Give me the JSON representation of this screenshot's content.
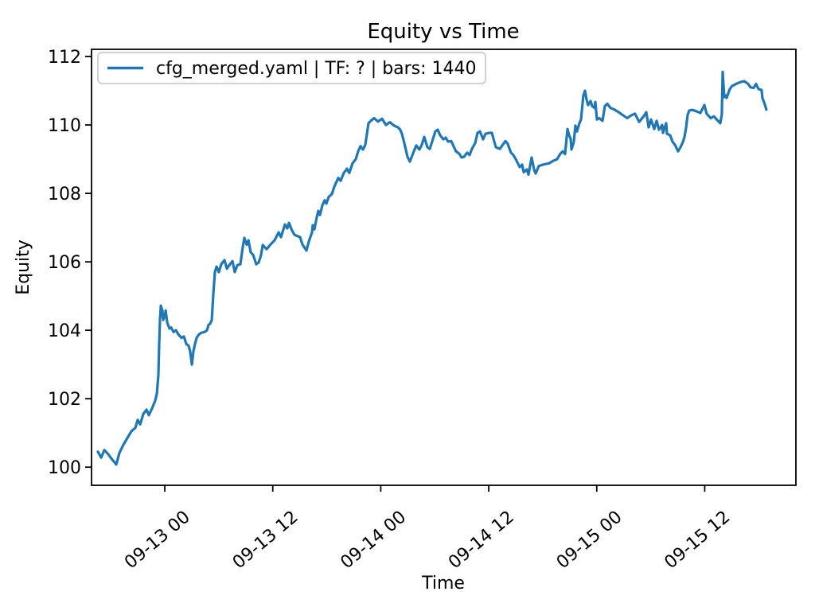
{
  "figure": {
    "background": "#ffffff",
    "accent_line_color": "#1f77b4",
    "legend_border_color": "#cccccc"
  },
  "chart_data": {
    "type": "line",
    "title": "Equity vs Time",
    "xlabel": "Time",
    "ylabel": "Equity",
    "grid": false,
    "legend_position": "upper left",
    "x_unit": "hours since 09-13 00:00",
    "xlim": [
      -8.14,
      70.13
    ],
    "ylim": [
      99.47,
      112.21
    ],
    "yticks": [
      100,
      102,
      104,
      106,
      108,
      110,
      112
    ],
    "xticks": [
      {
        "h": 0,
        "label": "09-13 00"
      },
      {
        "h": 12,
        "label": "09-13 12"
      },
      {
        "h": 24,
        "label": "09-14 00"
      },
      {
        "h": 36,
        "label": "09-14 12"
      },
      {
        "h": 48,
        "label": "09-15 00"
      },
      {
        "h": 60,
        "label": "09-15 12"
      }
    ],
    "series": [
      {
        "name": "cfg_merged.yaml | TF: ? | bars: 1440",
        "color": "#1f77b4",
        "points": [
          [
            -7.43,
            100.45
          ],
          [
            -7.07,
            100.28
          ],
          [
            -6.72,
            100.5
          ],
          [
            -6.28,
            100.38
          ],
          [
            -5.84,
            100.22
          ],
          [
            -5.39,
            100.08
          ],
          [
            -5.04,
            100.42
          ],
          [
            -4.6,
            100.65
          ],
          [
            -4.16,
            100.85
          ],
          [
            -3.71,
            101.05
          ],
          [
            -3.27,
            101.15
          ],
          [
            -3.01,
            101.38
          ],
          [
            -2.74,
            101.25
          ],
          [
            -2.39,
            101.55
          ],
          [
            -2.03,
            101.68
          ],
          [
            -1.77,
            101.52
          ],
          [
            -1.41,
            101.72
          ],
          [
            -1.06,
            101.95
          ],
          [
            -0.88,
            102.15
          ],
          [
            -0.71,
            102.7
          ],
          [
            -0.62,
            103.6
          ],
          [
            -0.53,
            104.3
          ],
          [
            -0.44,
            104.72
          ],
          [
            -0.27,
            104.58
          ],
          [
            -0.18,
            104.3
          ],
          [
            0.0,
            104.42
          ],
          [
            0.09,
            104.58
          ],
          [
            0.27,
            104.22
          ],
          [
            0.53,
            104.05
          ],
          [
            0.71,
            104.08
          ],
          [
            0.97,
            103.95
          ],
          [
            1.24,
            104.0
          ],
          [
            1.5,
            103.88
          ],
          [
            1.86,
            103.78
          ],
          [
            2.12,
            103.82
          ],
          [
            2.39,
            103.6
          ],
          [
            2.65,
            103.55
          ],
          [
            2.83,
            103.37
          ],
          [
            3.01,
            103.0
          ],
          [
            3.19,
            103.4
          ],
          [
            3.36,
            103.6
          ],
          [
            3.54,
            103.78
          ],
          [
            3.8,
            103.88
          ],
          [
            4.07,
            103.93
          ],
          [
            4.42,
            103.95
          ],
          [
            4.69,
            104.0
          ],
          [
            4.86,
            104.16
          ],
          [
            5.04,
            104.19
          ],
          [
            5.22,
            104.3
          ],
          [
            5.39,
            105.05
          ],
          [
            5.57,
            105.7
          ],
          [
            5.75,
            105.86
          ],
          [
            6.01,
            105.7
          ],
          [
            6.28,
            105.93
          ],
          [
            6.63,
            106.05
          ],
          [
            6.9,
            105.8
          ],
          [
            7.16,
            105.9
          ],
          [
            7.52,
            106.02
          ],
          [
            7.78,
            105.7
          ],
          [
            8.05,
            105.9
          ],
          [
            8.4,
            105.93
          ],
          [
            8.67,
            106.44
          ],
          [
            8.84,
            106.7
          ],
          [
            9.11,
            106.5
          ],
          [
            9.29,
            106.63
          ],
          [
            9.55,
            106.28
          ],
          [
            9.82,
            106.2
          ],
          [
            10.17,
            105.93
          ],
          [
            10.43,
            105.98
          ],
          [
            10.7,
            106.2
          ],
          [
            10.88,
            106.49
          ],
          [
            11.32,
            106.37
          ],
          [
            11.76,
            106.51
          ],
          [
            12.2,
            106.63
          ],
          [
            12.65,
            106.86
          ],
          [
            12.91,
            106.72
          ],
          [
            13.35,
            107.09
          ],
          [
            13.62,
            106.98
          ],
          [
            13.8,
            107.14
          ],
          [
            14.15,
            106.91
          ],
          [
            14.41,
            106.79
          ],
          [
            15.03,
            106.72
          ],
          [
            15.3,
            106.51
          ],
          [
            15.74,
            106.33
          ],
          [
            16.01,
            106.6
          ],
          [
            16.36,
            106.86
          ],
          [
            16.45,
            107.07
          ],
          [
            16.62,
            106.95
          ],
          [
            16.89,
            107.3
          ],
          [
            17.07,
            107.49
          ],
          [
            17.24,
            107.37
          ],
          [
            17.51,
            107.65
          ],
          [
            17.77,
            107.8
          ],
          [
            17.95,
            107.7
          ],
          [
            18.22,
            107.9
          ],
          [
            18.57,
            107.98
          ],
          [
            18.84,
            108.2
          ],
          [
            19.28,
            108.45
          ],
          [
            19.54,
            108.37
          ],
          [
            19.9,
            108.6
          ],
          [
            20.25,
            108.72
          ],
          [
            20.51,
            108.6
          ],
          [
            20.87,
            108.88
          ],
          [
            21.22,
            109.0
          ],
          [
            21.49,
            109.23
          ],
          [
            21.75,
            109.38
          ],
          [
            22.02,
            109.28
          ],
          [
            22.28,
            109.42
          ],
          [
            22.64,
            110.05
          ],
          [
            22.9,
            110.12
          ],
          [
            23.26,
            110.2
          ],
          [
            23.7,
            110.1
          ],
          [
            24.14,
            110.18
          ],
          [
            24.58,
            110.0
          ],
          [
            25.02,
            110.08
          ],
          [
            25.47,
            109.98
          ],
          [
            25.91,
            109.93
          ],
          [
            26.17,
            109.86
          ],
          [
            26.35,
            109.74
          ],
          [
            26.62,
            109.47
          ],
          [
            26.97,
            109.07
          ],
          [
            27.24,
            108.93
          ],
          [
            27.68,
            109.23
          ],
          [
            27.94,
            109.4
          ],
          [
            28.3,
            109.28
          ],
          [
            28.56,
            109.42
          ],
          [
            28.83,
            109.65
          ],
          [
            29.18,
            109.35
          ],
          [
            29.45,
            109.3
          ],
          [
            30.07,
            109.81
          ],
          [
            30.33,
            109.86
          ],
          [
            30.6,
            109.7
          ],
          [
            30.95,
            109.58
          ],
          [
            31.22,
            109.63
          ],
          [
            31.48,
            109.51
          ],
          [
            31.83,
            109.53
          ],
          [
            32.36,
            109.23
          ],
          [
            32.72,
            109.16
          ],
          [
            32.98,
            109.05
          ],
          [
            33.25,
            109.07
          ],
          [
            33.6,
            109.19
          ],
          [
            33.87,
            109.12
          ],
          [
            34.13,
            109.3
          ],
          [
            34.49,
            109.47
          ],
          [
            34.75,
            109.77
          ],
          [
            35.02,
            109.81
          ],
          [
            35.37,
            109.58
          ],
          [
            35.64,
            109.74
          ],
          [
            36.08,
            109.77
          ],
          [
            36.35,
            109.77
          ],
          [
            36.79,
            109.35
          ],
          [
            37.23,
            109.3
          ],
          [
            37.85,
            109.53
          ],
          [
            38.11,
            109.45
          ],
          [
            38.47,
            109.19
          ],
          [
            38.73,
            109.12
          ],
          [
            39.0,
            109.0
          ],
          [
            39.44,
            108.77
          ],
          [
            39.71,
            108.84
          ],
          [
            39.88,
            108.62
          ],
          [
            40.24,
            108.7
          ],
          [
            40.41,
            108.55
          ],
          [
            40.77,
            109.05
          ],
          [
            41.03,
            108.7
          ],
          [
            41.21,
            108.58
          ],
          [
            41.56,
            108.8
          ],
          [
            42.01,
            108.84
          ],
          [
            42.71,
            108.88
          ],
          [
            43.15,
            108.95
          ],
          [
            43.6,
            109.0
          ],
          [
            43.95,
            109.16
          ],
          [
            44.22,
            109.23
          ],
          [
            44.48,
            109.15
          ],
          [
            44.75,
            109.88
          ],
          [
            44.92,
            109.7
          ],
          [
            45.1,
            109.6
          ],
          [
            45.19,
            109.28
          ],
          [
            45.45,
            109.5
          ],
          [
            45.63,
            109.98
          ],
          [
            45.81,
            109.81
          ],
          [
            46.07,
            110.05
          ],
          [
            46.25,
            110.16
          ],
          [
            46.51,
            110.85
          ],
          [
            46.69,
            111.0
          ],
          [
            46.87,
            110.74
          ],
          [
            47.04,
            110.58
          ],
          [
            47.31,
            110.7
          ],
          [
            47.49,
            110.55
          ],
          [
            47.75,
            110.5
          ],
          [
            47.84,
            110.67
          ],
          [
            48.02,
            110.16
          ],
          [
            48.28,
            110.2
          ],
          [
            48.64,
            110.12
          ],
          [
            48.9,
            110.55
          ],
          [
            49.17,
            110.62
          ],
          [
            49.52,
            110.5
          ],
          [
            49.96,
            110.45
          ],
          [
            50.41,
            110.38
          ],
          [
            50.67,
            110.33
          ],
          [
            50.94,
            110.28
          ],
          [
            51.38,
            110.2
          ],
          [
            51.82,
            110.28
          ],
          [
            52.26,
            110.33
          ],
          [
            52.71,
            110.09
          ],
          [
            53.15,
            110.23
          ],
          [
            53.5,
            110.37
          ],
          [
            53.77,
            109.93
          ],
          [
            54.03,
            110.16
          ],
          [
            54.39,
            109.88
          ],
          [
            54.65,
            110.12
          ],
          [
            54.92,
            109.86
          ],
          [
            55.27,
            110.0
          ],
          [
            55.36,
            109.77
          ],
          [
            55.71,
            110.05
          ],
          [
            55.8,
            109.74
          ],
          [
            56.16,
            109.7
          ],
          [
            56.42,
            109.51
          ],
          [
            56.69,
            109.42
          ],
          [
            57.04,
            109.23
          ],
          [
            57.31,
            109.35
          ],
          [
            57.57,
            109.5
          ],
          [
            57.75,
            109.65
          ],
          [
            57.92,
            109.9
          ],
          [
            58.1,
            110.3
          ],
          [
            58.28,
            110.42
          ],
          [
            58.63,
            110.44
          ],
          [
            59.07,
            110.4
          ],
          [
            59.52,
            110.35
          ],
          [
            59.96,
            110.58
          ],
          [
            60.22,
            110.33
          ],
          [
            60.66,
            110.2
          ],
          [
            61.02,
            110.25
          ],
          [
            61.46,
            110.12
          ],
          [
            61.73,
            110.05
          ],
          [
            61.9,
            110.3
          ],
          [
            61.99,
            111.55
          ],
          [
            62.17,
            110.81
          ],
          [
            62.34,
            110.86
          ],
          [
            62.43,
            110.79
          ],
          [
            62.79,
            111.05
          ],
          [
            63.05,
            111.14
          ],
          [
            63.49,
            111.2
          ],
          [
            63.94,
            111.25
          ],
          [
            64.38,
            111.28
          ],
          [
            64.82,
            111.2
          ],
          [
            65.08,
            111.1
          ],
          [
            65.44,
            111.08
          ],
          [
            65.7,
            111.2
          ],
          [
            65.97,
            111.05
          ],
          [
            66.32,
            111.02
          ],
          [
            66.41,
            110.79
          ],
          [
            66.68,
            110.6
          ],
          [
            66.85,
            110.45
          ]
        ]
      }
    ]
  }
}
